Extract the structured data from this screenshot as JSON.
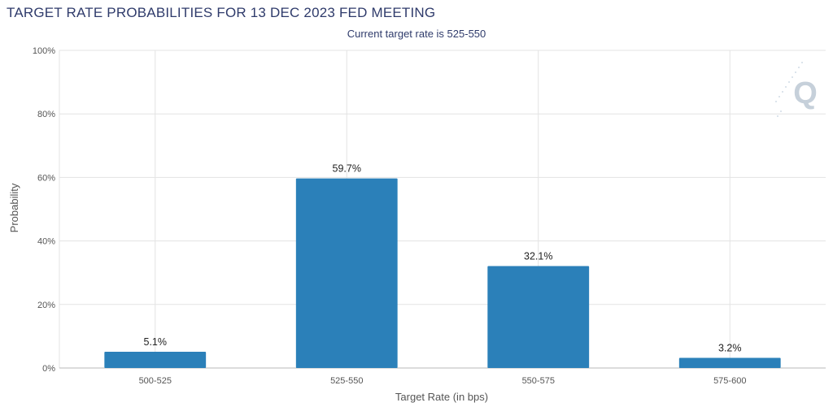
{
  "chart_data": {
    "type": "bar",
    "title": "TARGET RATE PROBABILITIES FOR 13 DEC 2023 FED MEETING",
    "subtitle": "Current target rate is 525-550",
    "xlabel": "Target Rate (in bps)",
    "ylabel": "Probability",
    "categories": [
      "500-525",
      "525-550",
      "550-575",
      "575-600"
    ],
    "values": [
      5.1,
      59.7,
      32.1,
      3.2
    ],
    "data_labels": [
      "5.1%",
      "59.7%",
      "32.1%",
      "3.2%"
    ],
    "ylim": [
      0,
      100
    ],
    "yticks": [
      0,
      20,
      40,
      60,
      80,
      100
    ],
    "ytick_labels": [
      "0%",
      "20%",
      "40%",
      "60%",
      "80%",
      "100%"
    ],
    "grid": true,
    "bar_color": "#2b80b9",
    "watermark_icon": "q-logo-icon"
  }
}
